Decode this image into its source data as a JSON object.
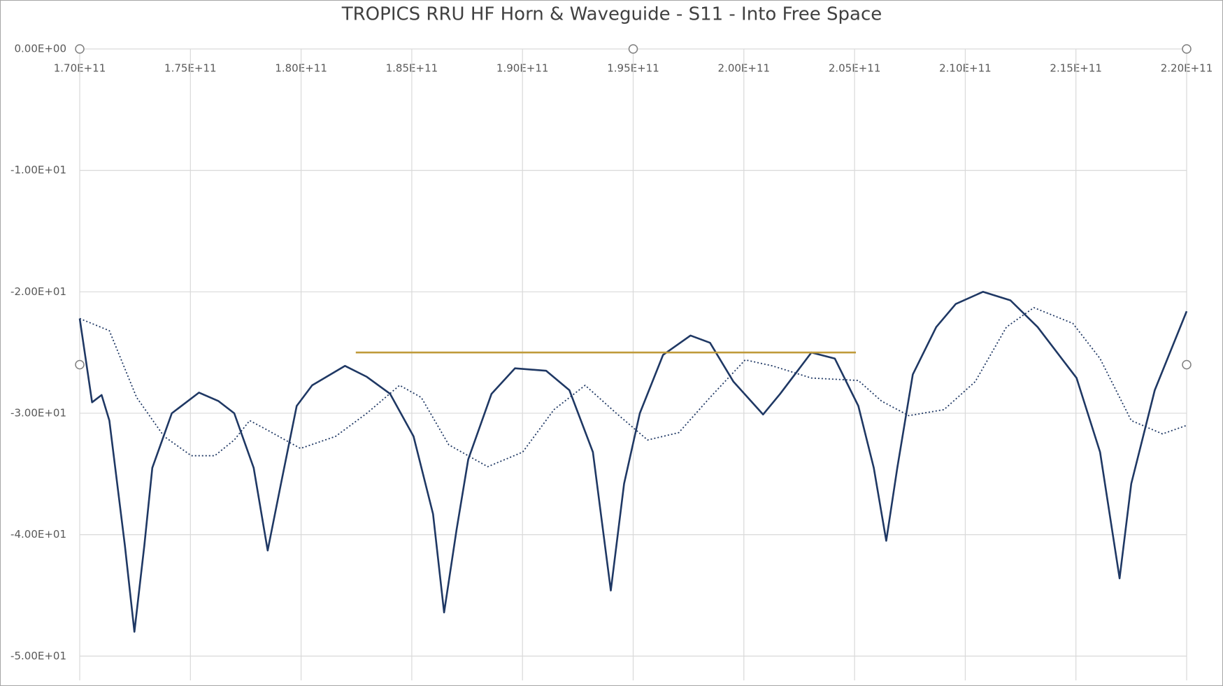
{
  "chart_data": {
    "type": "line",
    "title": "TROPICS RRU HF Horn & Waveguide  - S11 - Into Free Space",
    "xlim": [
      170000000000.0,
      220000000000.0
    ],
    "xticks": [
      {
        "value": 170000000000.0,
        "label": "1.70E+11"
      },
      {
        "value": 175000000000.0,
        "label": "1.75E+11"
      },
      {
        "value": 180000000000.0,
        "label": "1.80E+11"
      },
      {
        "value": 185000000000.0,
        "label": "1.85E+11"
      },
      {
        "value": 190000000000.0,
        "label": "1.90E+11"
      },
      {
        "value": 195000000000.0,
        "label": "1.95E+11"
      },
      {
        "value": 200000000000.0,
        "label": "2.00E+11"
      },
      {
        "value": 205000000000.0,
        "label": "2.05E+11"
      },
      {
        "value": 210000000000.0,
        "label": "2.10E+11"
      },
      {
        "value": 215000000000.0,
        "label": "2.15E+11"
      },
      {
        "value": 220000000000.0,
        "label": "2.20E+11"
      }
    ],
    "ylim": [
      -52,
      0
    ],
    "yticks": [
      {
        "value": 0,
        "label": "0.00E+00"
      },
      {
        "value": -10,
        "label": "-1.00E+01"
      },
      {
        "value": -20,
        "label": "-2.00E+01"
      },
      {
        "value": -30,
        "label": "-3.00E+01"
      },
      {
        "value": -40,
        "label": "-4.00E+01"
      },
      {
        "value": -50,
        "label": "-5.00E+01"
      }
    ],
    "grid": true,
    "series": [
      {
        "color": "#1f3864",
        "style": "solid",
        "x": [
          170000000000.0,
          170560000000.0,
          170990000000.0,
          171340000000.0,
          172040000000.0,
          172470000000.0,
          172920000000.0,
          173280000000.0,
          174160000000.0,
          175390000000.0,
          176270000000.0,
          176980000000.0,
          177860000000.0,
          178490000000.0,
          179090000000.0,
          179800000000.0,
          180500000000.0,
          181980000000.0,
          182970000000.0,
          184020000000.0,
          185080000000.0,
          185960000000.0,
          186460000000.0,
          187020000000.0,
          187550000000.0,
          188600000000.0,
          189660000000.0,
          191070000000.0,
          192120000000.0,
          193180000000.0,
          193990000000.0,
          194590000000.0,
          195300000000.0,
          196350000000.0,
          197590000000.0,
          198470000000.0,
          199530000000.0,
          200870000000.0,
          201640000000.0,
          203050000000.0,
          204110000000.0,
          205170000000.0,
          205870000000.0,
          206430000000.0,
          206930000000.0,
          207630000000.0,
          208690000000.0,
          209570000000.0,
          210800000000.0,
          212040000000.0,
          213270000000.0,
          215030000000.0,
          216090000000.0,
          216970000000.0,
          217500000000.0,
          218560000000.0,
          220000000000.0
        ],
        "values": [
          -22.2,
          -29.1,
          -28.5,
          -30.6,
          -40.9,
          -48.0,
          -40.9,
          -34.5,
          -30.0,
          -28.3,
          -29.0,
          -30.0,
          -34.5,
          -41.3,
          -35.8,
          -29.4,
          -27.7,
          -26.1,
          -27.0,
          -28.4,
          -31.9,
          -38.3,
          -46.4,
          -39.6,
          -33.8,
          -28.4,
          -26.3,
          -26.5,
          -28.1,
          -33.2,
          -44.6,
          -35.8,
          -30.0,
          -25.2,
          -23.6,
          -24.2,
          -27.4,
          -30.1,
          -28.4,
          -25.0,
          -25.5,
          -29.4,
          -34.5,
          -40.5,
          -34.5,
          -26.8,
          -22.9,
          -21.0,
          -20.0,
          -20.7,
          -22.9,
          -27.1,
          -33.2,
          -43.6,
          -35.8,
          -28.1,
          -21.6
        ]
      },
      {
        "color": "#1f3864",
        "style": "dotted",
        "x": [
          170000000000.0,
          171340000000.0,
          172570000000.0,
          173810000000.0,
          175040000000.0,
          176100000000.0,
          176980000000.0,
          177680000000.0,
          178390000000.0,
          179970000000.0,
          181560000000.0,
          182970000000.0,
          184450000000.0,
          185430000000.0,
          186670000000.0,
          188430000000.0,
          190010000000.0,
          191420000000.0,
          192830000000.0,
          194240000000.0,
          195650000000.0,
          197060000000.0,
          198470000000.0,
          200060000000.0,
          201290000000.0,
          203050000000.0,
          205170000000.0,
          206220000000.0,
          207450000000.0,
          209040000000.0,
          210450000000.0,
          211860000000.0,
          213100000000.0,
          214860000000.0,
          216090000000.0,
          217500000000.0,
          218910000000.0,
          220000000000.0
        ],
        "values": [
          -22.2,
          -23.2,
          -28.7,
          -31.9,
          -33.5,
          -33.5,
          -32.2,
          -30.6,
          -31.3,
          -32.9,
          -31.9,
          -30.0,
          -27.7,
          -28.7,
          -32.6,
          -34.4,
          -33.2,
          -29.7,
          -27.7,
          -30.0,
          -32.2,
          -31.6,
          -28.7,
          -25.6,
          -26.1,
          -27.1,
          -27.3,
          -29.0,
          -30.2,
          -29.7,
          -27.4,
          -22.9,
          -21.3,
          -22.6,
          -25.5,
          -30.6,
          -31.7,
          -31.0
        ]
      },
      {
        "color": "#bf9a3a",
        "style": "solid",
        "x": [
          182470000000.0,
          205060000000.0
        ],
        "values": [
          -25.0,
          -25.0
        ]
      }
    ]
  }
}
